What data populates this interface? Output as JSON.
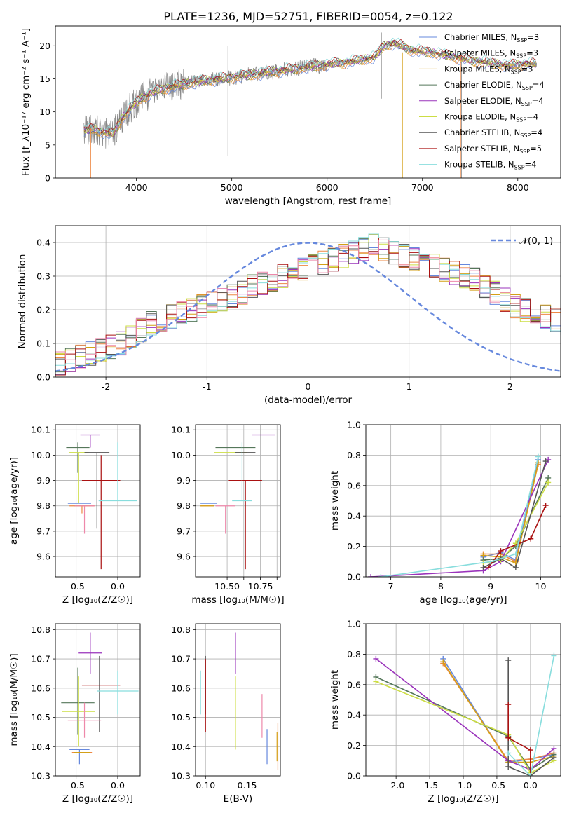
{
  "figure": {
    "title": "PLATE=1236, MJD=52751, FIBERID=0054, z=0.122",
    "colors": {
      "chabrier_miles": "#6688dd",
      "salpeter_miles": "#ee8844",
      "kroupa_miles": "#d4a017",
      "chabrier_elodie": "#55775a",
      "salpeter_elodie": "#9a33bb",
      "kroupa_elodie": "#ccdd44",
      "chabrier_stelib": "#555555",
      "salpeter_stelib": "#aa1111",
      "kroupa_stelib": "#88dddd",
      "extra_pink": "#ee88aa",
      "observed": "#888888"
    }
  },
  "chart_data": [
    {
      "type": "line",
      "panel": "spectrum",
      "xlabel": "wavelength [Angstrom, rest frame]",
      "ylabel": "Flux [f_λ10⁻¹⁷ erg cm⁻² s⁻¹ A⁻¹]",
      "xlim": [
        3150,
        8450
      ],
      "ylim": [
        0,
        23
      ],
      "xticks": [
        4000,
        5000,
        6000,
        7000,
        8000
      ],
      "yticks": [
        0,
        5,
        10,
        15,
        20
      ],
      "legend_position": "top-right",
      "legend": [
        {
          "label": "Chabrier MILES, N",
          "sub": "SSP",
          "eq": "=3",
          "color": "#6688dd"
        },
        {
          "label": "Salpeter MILES, N",
          "sub": "SSP",
          "eq": "=3",
          "color": "#ee8844"
        },
        {
          "label": "Kroupa MILES, N",
          "sub": "SSP",
          "eq": "=3",
          "color": "#d4a017"
        },
        {
          "label": "Chabrier ELODIE, N",
          "sub": "SSP",
          "eq": "=4",
          "color": "#55775a"
        },
        {
          "label": "Salpeter ELODIE, N",
          "sub": "SSP",
          "eq": "=4",
          "color": "#9a33bb"
        },
        {
          "label": "Kroupa ELODIE, N",
          "sub": "SSP",
          "eq": "=4",
          "color": "#ccdd44"
        },
        {
          "label": "Chabrier STELIB, N",
          "sub": "SSP",
          "eq": "=4",
          "color": "#555555"
        },
        {
          "label": "Salpeter STELIB, N",
          "sub": "SSP",
          "eq": "=5",
          "color": "#aa1111"
        },
        {
          "label": "Kroupa STELIB, N",
          "sub": "SSP",
          "eq": "=4",
          "color": "#88dddd"
        }
      ],
      "continuum": {
        "x": [
          3450,
          3550,
          3650,
          3750,
          3850,
          3950,
          4050,
          4150,
          4300,
          4500,
          4700,
          4900,
          5100,
          5300,
          5500,
          5700,
          5900,
          6100,
          6300,
          6500,
          6600,
          6700,
          6900,
          7100,
          7300,
          7500,
          7700,
          7900,
          8100,
          8200
        ],
        "y": [
          7.2,
          7.3,
          7.0,
          6.6,
          9.0,
          10.8,
          12.0,
          12.8,
          13.6,
          14.2,
          14.7,
          15.0,
          15.4,
          15.8,
          16.2,
          16.6,
          17.0,
          17.3,
          17.7,
          18.3,
          20.0,
          20.4,
          19.3,
          19.0,
          18.4,
          17.8,
          17.4,
          17.0,
          17.3,
          17.2
        ]
      },
      "observed_spikes": [
        {
          "x": 3910,
          "y_low": 0,
          "y_high": 13
        },
        {
          "x": 4330,
          "y_low": 4,
          "y_high": 23
        },
        {
          "x": 4960,
          "y_low": 3.3,
          "y_high": 20
        },
        {
          "x": 6570,
          "y_low": 12,
          "y_high": 22
        },
        {
          "x": 6785,
          "y_low": 0,
          "y_high": 22
        },
        {
          "x": 7410,
          "y_low": 0,
          "y_high": 19
        }
      ]
    },
    {
      "type": "histogram",
      "panel": "residuals",
      "xlabel": "(data-model)/error",
      "ylabel": "Normed distribution",
      "xlim": [
        -2.5,
        2.5
      ],
      "ylim": [
        0,
        0.45
      ],
      "xticks": [
        -2,
        -1,
        0,
        1,
        2
      ],
      "yticks": [
        0.0,
        0.1,
        0.2,
        0.3,
        0.4
      ],
      "grid": true,
      "legend_position": "top-right",
      "legend": [
        {
          "label": "𝒩(0, 1)",
          "color": "#6688dd",
          "style": "dashed"
        }
      ],
      "bin_width": 0.1,
      "base_values": [
        0.04,
        0.05,
        0.06,
        0.07,
        0.08,
        0.09,
        0.1,
        0.12,
        0.14,
        0.16,
        0.17,
        0.18,
        0.19,
        0.2,
        0.21,
        0.22,
        0.23,
        0.24,
        0.25,
        0.27,
        0.28,
        0.29,
        0.3,
        0.31,
        0.32,
        0.33,
        0.34,
        0.35,
        0.36,
        0.37,
        0.38,
        0.39,
        0.38,
        0.37,
        0.36,
        0.35,
        0.34,
        0.33,
        0.32,
        0.31,
        0.3,
        0.29,
        0.27,
        0.25,
        0.23,
        0.21,
        0.2,
        0.19,
        0.18,
        0.17,
        0.16,
        0.15,
        0.13,
        0.11,
        0.1,
        0.09,
        0.08,
        0.07,
        0.06,
        0.05
      ],
      "reference_curve": "gaussian_mean0_sigma1"
    },
    {
      "type": "errorbar",
      "panel": "age_vs_Z",
      "xlabel": "Z [log₁₀(Z/Z☉)]",
      "ylabel": "age  [log₁₀(age/yr)]",
      "xlim": [
        -0.75,
        0.27
      ],
      "ylim": [
        9.52,
        10.12
      ],
      "xticks": [
        -0.5,
        0.0
      ],
      "yticks": [
        9.6,
        9.7,
        9.8,
        9.9,
        10.0,
        10.1
      ],
      "grid": true,
      "points": [
        {
          "x": -0.46,
          "y": 9.81,
          "xerr": 0.14,
          "yerr_lo": 0.0,
          "yerr_hi": 0.0,
          "color": "#6688dd"
        },
        {
          "x": -0.43,
          "y": 9.8,
          "xerr": 0.15,
          "yerr_lo": 0.03,
          "yerr_hi": 0.0,
          "color": "#ee8844"
        },
        {
          "x": -0.43,
          "y": 9.8,
          "xerr": 0.1,
          "yerr_lo": 0.0,
          "yerr_hi": 0.0,
          "color": "#d4a017"
        },
        {
          "x": -0.48,
          "y": 10.03,
          "xerr": 0.14,
          "yerr_lo": 0.1,
          "yerr_hi": 0.02,
          "color": "#55775a"
        },
        {
          "x": -0.33,
          "y": 10.08,
          "xerr": 0.12,
          "yerr_lo": 0.05,
          "yerr_hi": 0.0,
          "color": "#9a33bb"
        },
        {
          "x": -0.47,
          "y": 10.01,
          "xerr": 0.12,
          "yerr_lo": 0.2,
          "yerr_hi": 0.0,
          "color": "#ccdd44"
        },
        {
          "x": -0.25,
          "y": 10.01,
          "xerr": 0.15,
          "yerr_lo": 0.3,
          "yerr_hi": 0.0,
          "color": "#555555"
        },
        {
          "x": -0.2,
          "y": 9.9,
          "xerr": 0.23,
          "yerr_lo": 0.35,
          "yerr_hi": 0.1,
          "color": "#aa1111"
        },
        {
          "x": 0.0,
          "y": 9.82,
          "xerr": 0.23,
          "yerr_lo": 0.0,
          "yerr_hi": 0.23,
          "color": "#88dddd"
        },
        {
          "x": -0.4,
          "y": 9.8,
          "xerr": 0.12,
          "yerr_lo": 0.11,
          "yerr_hi": 0.0,
          "color": "#ee88aa"
        }
      ]
    },
    {
      "type": "errorbar",
      "panel": "age_vs_mass",
      "xlabel": "mass [log₁₀(M/M☉)]",
      "ylabel": "",
      "xlim": [
        10.31,
        10.82
      ],
      "ylim": [
        9.52,
        10.12
      ],
      "xticks": [
        10.5,
        10.6,
        10.7,
        10.8
      ],
      "xticklabels": [
        "10.50",
        "",
        "10.75",
        ""
      ],
      "yticks": [
        9.6,
        9.7,
        9.8,
        9.9,
        10.0,
        10.1
      ],
      "grid": true,
      "points": [
        {
          "x": 10.39,
          "y": 9.81,
          "xerr": 0.05,
          "yerr_lo": 0.0,
          "yerr_hi": 0.0,
          "color": "#6688dd"
        },
        {
          "x": 10.38,
          "y": 9.8,
          "xerr": 0.04,
          "yerr_lo": 0.0,
          "yerr_hi": 0.0,
          "color": "#ee8844"
        },
        {
          "x": 10.38,
          "y": 9.8,
          "xerr": 0.04,
          "yerr_lo": 0.0,
          "yerr_hi": 0.0,
          "color": "#d4a017"
        },
        {
          "x": 10.55,
          "y": 10.03,
          "xerr": 0.12,
          "yerr_lo": 0.0,
          "yerr_hi": 0.0,
          "color": "#55775a"
        },
        {
          "x": 10.72,
          "y": 10.08,
          "xerr": 0.07,
          "yerr_lo": 0.0,
          "yerr_hi": 0.0,
          "color": "#9a33bb"
        },
        {
          "x": 10.52,
          "y": 10.01,
          "xerr": 0.1,
          "yerr_lo": 0.0,
          "yerr_hi": 0.0,
          "color": "#ccdd44"
        },
        {
          "x": 10.61,
          "y": 10.01,
          "xerr": 0.06,
          "yerr_lo": 0.0,
          "yerr_hi": 0.0,
          "color": "#555555"
        },
        {
          "x": 10.61,
          "y": 9.9,
          "xerr": 0.1,
          "yerr_lo": 0.35,
          "yerr_hi": 0.0,
          "color": "#aa1111"
        },
        {
          "x": 10.59,
          "y": 9.82,
          "xerr": 0.06,
          "yerr_lo": 0.0,
          "yerr_hi": 0.23,
          "color": "#88dddd"
        },
        {
          "x": 10.49,
          "y": 9.8,
          "xerr": 0.06,
          "yerr_lo": 0.11,
          "yerr_hi": 0.0,
          "color": "#ee88aa"
        }
      ]
    },
    {
      "type": "line",
      "panel": "mass_weight_vs_age",
      "xlabel": "age  [log₁₀(age/yr)]",
      "ylabel": "mass weight",
      "xlim": [
        6.5,
        10.4
      ],
      "ylim": [
        0,
        1.0
      ],
      "xticks": [
        7,
        8,
        9,
        10
      ],
      "yticks": [
        0.0,
        0.2,
        0.4,
        0.6,
        0.8,
        1.0
      ],
      "grid": true,
      "marker": "+",
      "series": [
        {
          "color": "#6688dd",
          "x": [
            8.85,
            9.2,
            9.5,
            9.95
          ],
          "y": [
            0.13,
            0.16,
            0.11,
            0.77
          ]
        },
        {
          "color": "#ee8844",
          "x": [
            8.85,
            9.2,
            9.5,
            9.95
          ],
          "y": [
            0.15,
            0.15,
            0.1,
            0.74
          ]
        },
        {
          "color": "#d4a017",
          "x": [
            8.85,
            9.2,
            9.5,
            9.95
          ],
          "y": [
            0.14,
            0.13,
            0.09,
            0.75
          ]
        },
        {
          "color": "#55775a",
          "x": [
            8.85,
            9.2,
            9.5,
            10.15
          ],
          "y": [
            0.11,
            0.12,
            0.2,
            0.65
          ]
        },
        {
          "color": "#9a33bb",
          "x": [
            6.6,
            8.85,
            9.2,
            10.15
          ],
          "y": [
            0.0,
            0.04,
            0.1,
            0.77
          ]
        },
        {
          "color": "#ccdd44",
          "x": [
            8.85,
            9.2,
            9.5,
            10.15
          ],
          "y": [
            0.09,
            0.11,
            0.22,
            0.62
          ]
        },
        {
          "color": "#555555",
          "x": [
            8.85,
            9.2,
            9.5,
            10.1
          ],
          "y": [
            0.06,
            0.12,
            0.06,
            0.76
          ]
        },
        {
          "color": "#aa1111",
          "x": [
            8.95,
            9.2,
            9.8,
            10.1
          ],
          "y": [
            0.06,
            0.17,
            0.25,
            0.47
          ]
        },
        {
          "color": "#88dddd",
          "x": [
            6.8,
            9.0,
            9.5,
            9.95
          ],
          "y": [
            0.0,
            0.1,
            0.15,
            0.79
          ]
        }
      ]
    },
    {
      "type": "errorbar",
      "panel": "mass_vs_Z",
      "xlabel": "Z [log₁₀(Z/Z☉)]",
      "ylabel": "mass [log₁₀(M/M☉)]",
      "xlim": [
        -0.75,
        0.27
      ],
      "ylim": [
        10.3,
        10.82
      ],
      "xticks": [
        -0.5,
        0.0
      ],
      "yticks": [
        10.3,
        10.4,
        10.5,
        10.6,
        10.7,
        10.8
      ],
      "grid": true,
      "points": [
        {
          "x": -0.46,
          "y": 10.39,
          "xerr": 0.12,
          "yerr_lo": 0.05,
          "yerr_hi": 0.0,
          "color": "#6688dd"
        },
        {
          "x": -0.43,
          "y": 10.38,
          "xerr": 0.12,
          "yerr_lo": 0.0,
          "yerr_hi": 0.0,
          "color": "#ee8844"
        },
        {
          "x": -0.43,
          "y": 10.38,
          "xerr": 0.1,
          "yerr_lo": 0.0,
          "yerr_hi": 0.0,
          "color": "#d4a017"
        },
        {
          "x": -0.48,
          "y": 10.55,
          "xerr": 0.2,
          "yerr_lo": 0.11,
          "yerr_hi": 0.12,
          "color": "#55775a"
        },
        {
          "x": -0.33,
          "y": 10.72,
          "xerr": 0.14,
          "yerr_lo": 0.07,
          "yerr_hi": 0.07,
          "color": "#9a33bb"
        },
        {
          "x": -0.47,
          "y": 10.52,
          "xerr": 0.2,
          "yerr_lo": 0.12,
          "yerr_hi": 0.12,
          "color": "#ccdd44"
        },
        {
          "x": -0.22,
          "y": 10.61,
          "xerr": 0.0,
          "yerr_lo": 0.16,
          "yerr_hi": 0.1,
          "color": "#555555"
        },
        {
          "x": -0.2,
          "y": 10.61,
          "xerr": 0.23,
          "yerr_lo": 0.0,
          "yerr_hi": 0.0,
          "color": "#aa1111"
        },
        {
          "x": 0.0,
          "y": 10.59,
          "xerr": 0.25,
          "yerr_lo": 0.08,
          "yerr_hi": 0.07,
          "color": "#88dddd"
        },
        {
          "x": -0.4,
          "y": 10.49,
          "xerr": 0.2,
          "yerr_lo": 0.06,
          "yerr_hi": 0.06,
          "color": "#ee88aa"
        }
      ]
    },
    {
      "type": "errorbar",
      "panel": "mass_vs_ebv",
      "xlabel": "E(B-V)",
      "ylabel": "",
      "xlim": [
        0.088,
        0.19
      ],
      "ylim": [
        10.3,
        10.82
      ],
      "xticks": [
        0.1,
        0.15
      ],
      "xticklabels": [
        "0.10",
        "0.15"
      ],
      "yticks": [
        10.3,
        10.4,
        10.5,
        10.6,
        10.7,
        10.8
      ],
      "grid": true,
      "points": [
        {
          "x": 0.174,
          "y": 10.39,
          "xerr": 0.0,
          "yerr_lo": 0.05,
          "yerr_hi": 0.07,
          "color": "#6688dd"
        },
        {
          "x": 0.187,
          "y": 10.38,
          "xerr": 0.0,
          "yerr_lo": 0.06,
          "yerr_hi": 0.1,
          "color": "#ee8844"
        },
        {
          "x": 0.186,
          "y": 10.4,
          "xerr": 0.0,
          "yerr_lo": 0.05,
          "yerr_hi": 0.05,
          "color": "#d4a017"
        },
        {
          "x": 0.136,
          "y": 10.72,
          "xerr": 0.0,
          "yerr_lo": 0.07,
          "yerr_hi": 0.07,
          "color": "#9a33bb"
        },
        {
          "x": 0.136,
          "y": 10.52,
          "xerr": 0.0,
          "yerr_lo": 0.13,
          "yerr_hi": 0.12,
          "color": "#ccdd44"
        },
        {
          "x": 0.1,
          "y": 10.61,
          "xerr": 0.0,
          "yerr_lo": 0.1,
          "yerr_hi": 0.1,
          "color": "#555555"
        },
        {
          "x": 0.1,
          "y": 10.57,
          "xerr": 0.0,
          "yerr_lo": 0.12,
          "yerr_hi": 0.13,
          "color": "#aa1111"
        },
        {
          "x": 0.094,
          "y": 10.59,
          "xerr": 0.0,
          "yerr_lo": 0.08,
          "yerr_hi": 0.07,
          "color": "#88dddd"
        },
        {
          "x": 0.168,
          "y": 10.49,
          "xerr": 0.0,
          "yerr_lo": 0.06,
          "yerr_hi": 0.09,
          "color": "#ee88aa"
        }
      ]
    },
    {
      "type": "line",
      "panel": "mass_weight_vs_Z",
      "xlabel": "Z [log₁₀(Z/Z☉)]",
      "ylabel": "mass weight",
      "xlim": [
        -2.45,
        0.45
      ],
      "ylim": [
        0,
        1.0
      ],
      "xticks": [
        -2.0,
        -1.5,
        -1.0,
        -0.5,
        0.0
      ],
      "yticks": [
        0.0,
        0.2,
        0.4,
        0.6,
        0.8,
        1.0
      ],
      "grid": true,
      "marker": "+",
      "series": [
        {
          "color": "#6688dd",
          "x": [
            -1.3,
            -0.33,
            0.0,
            0.35
          ],
          "y": [
            0.77,
            0.09,
            0.11,
            0.14
          ]
        },
        {
          "color": "#ee8844",
          "x": [
            -1.3,
            -0.33,
            0.0,
            0.35
          ],
          "y": [
            0.74,
            0.1,
            0.11,
            0.15
          ]
        },
        {
          "color": "#d4a017",
          "x": [
            -1.3,
            -0.33,
            0.0,
            0.35
          ],
          "y": [
            0.75,
            0.09,
            0.09,
            0.13
          ]
        },
        {
          "color": "#55775a",
          "x": [
            -2.3,
            -0.33,
            0.0,
            0.35
          ],
          "y": [
            0.65,
            0.26,
            0.04,
            0.14
          ]
        },
        {
          "color": "#9a33bb",
          "x": [
            -2.3,
            -0.33,
            0.0,
            0.35
          ],
          "y": [
            0.77,
            0.1,
            0.04,
            0.18
          ]
        },
        {
          "color": "#ccdd44",
          "x": [
            -2.3,
            -0.33,
            0.0,
            0.35
          ],
          "y": [
            0.62,
            0.27,
            0.02,
            0.1
          ]
        },
        {
          "color": "#555555",
          "x": [
            -0.33,
            -0.33,
            0.0,
            0.35
          ],
          "y": [
            0.76,
            0.06,
            0.0,
            0.12
          ]
        },
        {
          "color": "#aa1111",
          "x": [
            -0.33,
            -0.33,
            0.0,
            0.0
          ],
          "y": [
            0.47,
            0.25,
            0.17,
            0.0
          ]
        },
        {
          "color": "#88dddd",
          "x": [
            -0.33,
            0.0,
            0.35
          ],
          "y": [
            0.15,
            0.0,
            0.79
          ]
        }
      ]
    }
  ]
}
